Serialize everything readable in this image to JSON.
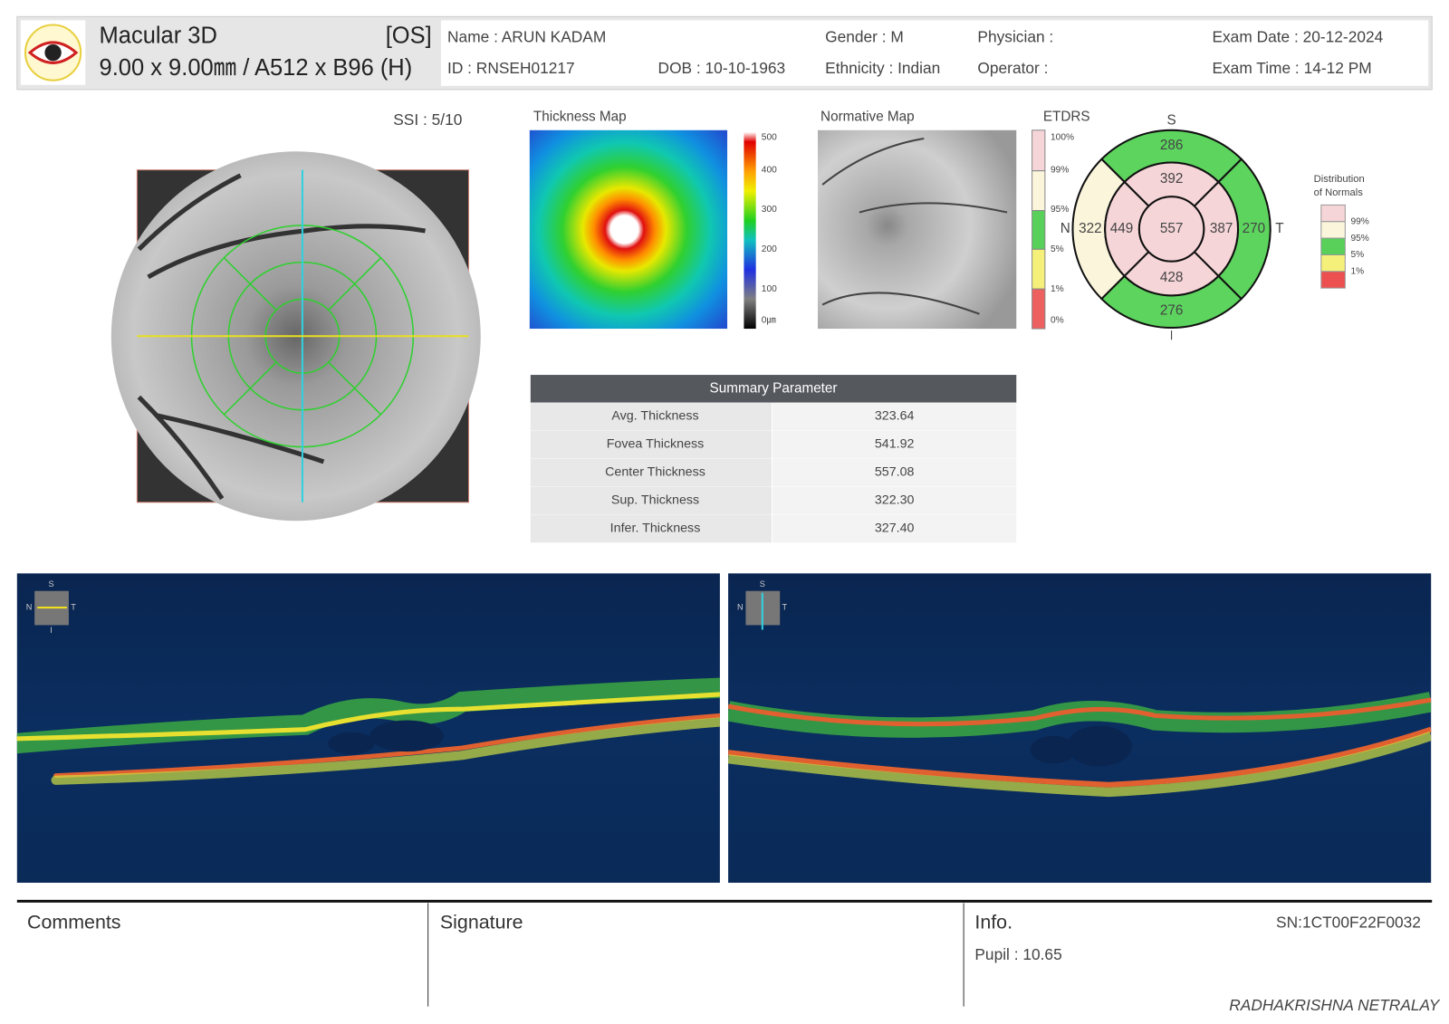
{
  "header": {
    "title": "Macular 3D",
    "eye": "[OS]",
    "scan": "9.00 x 9.00㎜ / A512 x B96 (H)",
    "name": "Name : ARUN KADAM",
    "id": "ID : RNSEH01217",
    "dob": "DOB : 10-10-1963",
    "gender": "Gender : M",
    "ethnicity": "Ethnicity : Indian",
    "physician": "Physician :",
    "operator": "Operator :",
    "exam_date": "Exam Date : 20-12-2024",
    "exam_time": "Exam Time : 14-12 PM"
  },
  "fundus": {
    "ssi": "SSI : 5/10"
  },
  "thickness_map": {
    "title": "Thickness Map",
    "scale": [
      "500",
      "400",
      "300",
      "200",
      "100",
      "0㎛"
    ]
  },
  "normative_map": {
    "title": "Normative Map"
  },
  "etdrs": {
    "title": "ETDRS",
    "scale": [
      "100%",
      "99%",
      "95%",
      "5%",
      "1%",
      "0%"
    ],
    "directions": {
      "superior": "S",
      "nasal": "N",
      "temporal": "T"
    },
    "sectors": {
      "outer_superior": "286",
      "inner_superior": "392",
      "outer_nasal": "322",
      "inner_nasal": "449",
      "center": "557",
      "inner_temporal": "387",
      "outer_temporal": "270",
      "inner_inferior": "428",
      "outer_inferior": "276"
    }
  },
  "legend": {
    "title_lines": [
      "Distribution",
      "of Normals"
    ],
    "labels": [
      "99%",
      "95%",
      "5%",
      "1%"
    ]
  },
  "summary": {
    "title": "Summary Parameter",
    "rows": [
      [
        "Avg. Thickness",
        "323.64"
      ],
      [
        "Fovea Thickness",
        "541.92"
      ],
      [
        "Center Thickness",
        "557.08"
      ],
      [
        "Sup. Thickness",
        "322.30"
      ],
      [
        "Infer. Thickness",
        "327.40"
      ]
    ]
  },
  "bscans": [
    {
      "top": "S",
      "left": "N",
      "right": "T",
      "bottom": "I"
    },
    {
      "top": "S",
      "left": "N",
      "right": "T"
    }
  ],
  "footer": {
    "comments": "Comments",
    "signature": "Signature",
    "info": "Info.",
    "serial": "SN:1CT00F22F0032",
    "pupil": "Pupil : 10.65",
    "clinic": "RADHAKRISHNA NETRALAY"
  }
}
